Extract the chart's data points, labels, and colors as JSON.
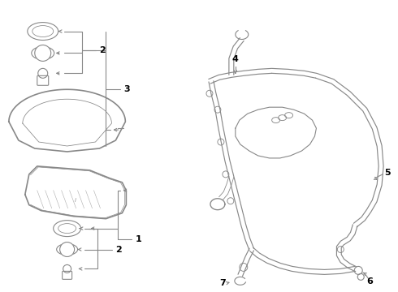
{
  "background_color": "#ffffff",
  "line_color": "#888888",
  "text_color": "#000000",
  "fig_width": 4.9,
  "fig_height": 3.6,
  "dpi": 100
}
